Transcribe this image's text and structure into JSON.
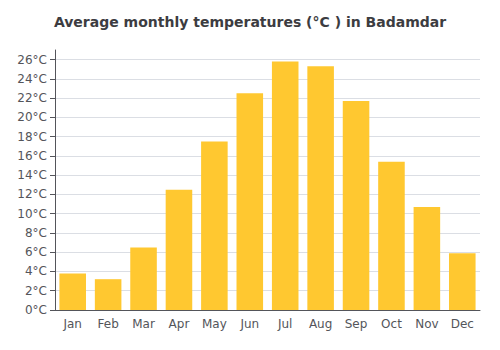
{
  "chart_data": {
    "type": "bar",
    "title": "Average monthly temperatures (°C ) in Badamdar",
    "categories": [
      "Jan",
      "Feb",
      "Mar",
      "Apr",
      "May",
      "Jun",
      "Jul",
      "Aug",
      "Sep",
      "Oct",
      "Nov",
      "Dec"
    ],
    "values": [
      3.8,
      3.2,
      6.5,
      12.5,
      17.5,
      22.5,
      25.8,
      25.3,
      21.7,
      15.4,
      10.7,
      5.9
    ],
    "color": "#FFC830",
    "ylim": [
      0,
      27
    ],
    "yticks": [
      {
        "value": 0,
        "label": "0°C"
      },
      {
        "value": 2,
        "label": "2°C"
      },
      {
        "value": 4,
        "label": "4°C"
      },
      {
        "value": 6,
        "label": "6°C"
      },
      {
        "value": 8,
        "label": "8°C"
      },
      {
        "value": 10,
        "label": "10°C"
      },
      {
        "value": 12,
        "label": "12°C"
      },
      {
        "value": 14,
        "label": "14°C"
      },
      {
        "value": 16,
        "label": "16°C"
      },
      {
        "value": 18,
        "label": "18°C"
      },
      {
        "value": 20,
        "label": "20°C"
      },
      {
        "value": 22,
        "label": "22°C"
      },
      {
        "value": 24,
        "label": "24°C"
      },
      {
        "value": 26,
        "label": "26°C"
      }
    ],
    "grid": true
  }
}
